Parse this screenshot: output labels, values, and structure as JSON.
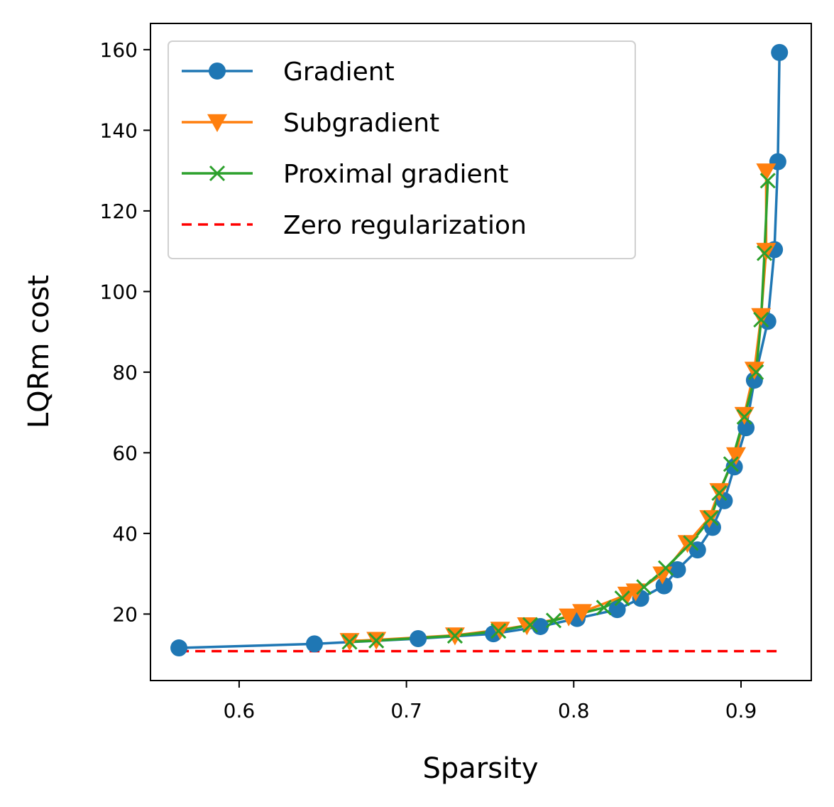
{
  "chart_data": {
    "type": "line",
    "xlabel": "Sparsity",
    "ylabel": "LQRm cost",
    "xlim": [
      0.547,
      0.942
    ],
    "ylim": [
      3.5,
      166.5
    ],
    "xticks": [
      0.6,
      0.7,
      0.8,
      0.9
    ],
    "xtick_labels": [
      "0.6",
      "0.7",
      "0.8",
      "0.9"
    ],
    "yticks": [
      20,
      40,
      60,
      80,
      100,
      120,
      140,
      160
    ],
    "ytick_labels": [
      "20",
      "40",
      "60",
      "80",
      "100",
      "120",
      "140",
      "160"
    ],
    "grid": false,
    "legend_position": "top-left",
    "series": [
      {
        "name": "Gradient",
        "color": "#1f77b4",
        "marker": "circle",
        "points": [
          [
            0.564,
            11.6
          ],
          [
            0.645,
            12.6
          ],
          [
            0.707,
            13.9
          ],
          [
            0.752,
            15.1
          ],
          [
            0.78,
            16.9
          ],
          [
            0.802,
            18.9
          ],
          [
            0.826,
            21.1
          ],
          [
            0.84,
            23.9
          ],
          [
            0.854,
            27.0
          ],
          [
            0.862,
            31.0
          ],
          [
            0.874,
            35.9
          ],
          [
            0.883,
            41.5
          ],
          [
            0.89,
            48.1
          ],
          [
            0.896,
            56.5
          ],
          [
            0.903,
            66.2
          ],
          [
            0.908,
            78.0
          ],
          [
            0.916,
            92.6
          ],
          [
            0.92,
            110.4
          ],
          [
            0.922,
            132.2
          ],
          [
            0.923,
            159.3
          ]
        ]
      },
      {
        "name": "Subgradient",
        "color": "#ff7f0e",
        "marker": "triangle-down",
        "points": [
          [
            0.666,
            13.3
          ],
          [
            0.682,
            13.6
          ],
          [
            0.729,
            14.7
          ],
          [
            0.756,
            16.1
          ],
          [
            0.772,
            17.2
          ],
          [
            0.797,
            19.4
          ],
          [
            0.805,
            20.5
          ],
          [
            0.832,
            24.8
          ],
          [
            0.837,
            25.6
          ],
          [
            0.853,
            29.8
          ],
          [
            0.868,
            37.6
          ],
          [
            0.881,
            43.8
          ],
          [
            0.887,
            50.5
          ],
          [
            0.897,
            59.4
          ],
          [
            0.902,
            69.4
          ],
          [
            0.908,
            80.6
          ],
          [
            0.912,
            93.9
          ],
          [
            0.915,
            110.1
          ],
          [
            0.915,
            129.8
          ]
        ]
      },
      {
        "name": "Proximal gradient",
        "color": "#2ca02c",
        "marker": "x",
        "points": [
          [
            0.666,
            13.1
          ],
          [
            0.682,
            13.4
          ],
          [
            0.729,
            14.6
          ],
          [
            0.755,
            15.8
          ],
          [
            0.774,
            17.3
          ],
          [
            0.788,
            18.4
          ],
          [
            0.818,
            21.6
          ],
          [
            0.829,
            23.9
          ],
          [
            0.842,
            26.7
          ],
          [
            0.855,
            31.4
          ],
          [
            0.87,
            37.6
          ],
          [
            0.882,
            43.8
          ],
          [
            0.887,
            50.0
          ],
          [
            0.894,
            57.2
          ],
          [
            0.902,
            68.9
          ],
          [
            0.909,
            80.0
          ],
          [
            0.912,
            93.0
          ],
          [
            0.914,
            109.5
          ],
          [
            0.916,
            127.5
          ]
        ]
      },
      {
        "name": "Zero regularization",
        "color": "#ff0000",
        "marker": "none",
        "dashed": true,
        "points": [
          [
            0.564,
            10.8
          ],
          [
            0.923,
            10.8
          ]
        ]
      }
    ]
  }
}
